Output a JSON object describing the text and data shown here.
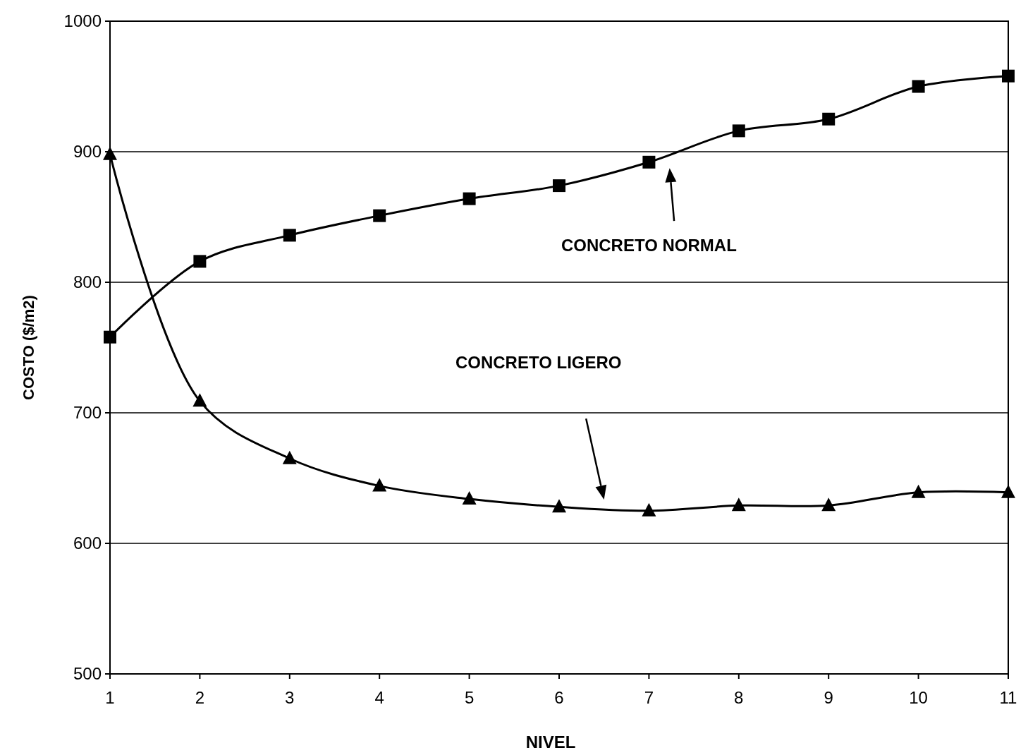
{
  "chart_data": {
    "type": "line",
    "xlabel": "NIVEL",
    "ylabel": "COSTO ($/m2)",
    "x": [
      1,
      2,
      3,
      4,
      5,
      6,
      7,
      8,
      9,
      10,
      11
    ],
    "xlim": [
      1,
      11
    ],
    "xticks": [
      1,
      2,
      3,
      4,
      5,
      6,
      7,
      8,
      9,
      10,
      11
    ],
    "ylim": [
      500,
      1000
    ],
    "yticks": [
      500,
      600,
      700,
      800,
      900,
      1000
    ],
    "grid": "y",
    "line_style": "solid",
    "series": [
      {
        "color": "#000000",
        "marker": "square",
        "values": [
          758,
          816,
          836,
          851,
          864,
          874,
          892,
          916,
          925,
          950,
          958
        ]
      },
      {
        "color": "#000000",
        "marker": "triangle",
        "values": [
          898,
          709,
          665,
          644,
          634,
          628,
          625,
          629,
          629,
          639,
          639
        ]
      }
    ],
    "annotations": [
      "CONCRETO NORMAL",
      "CONCRETO LIGERO"
    ]
  }
}
